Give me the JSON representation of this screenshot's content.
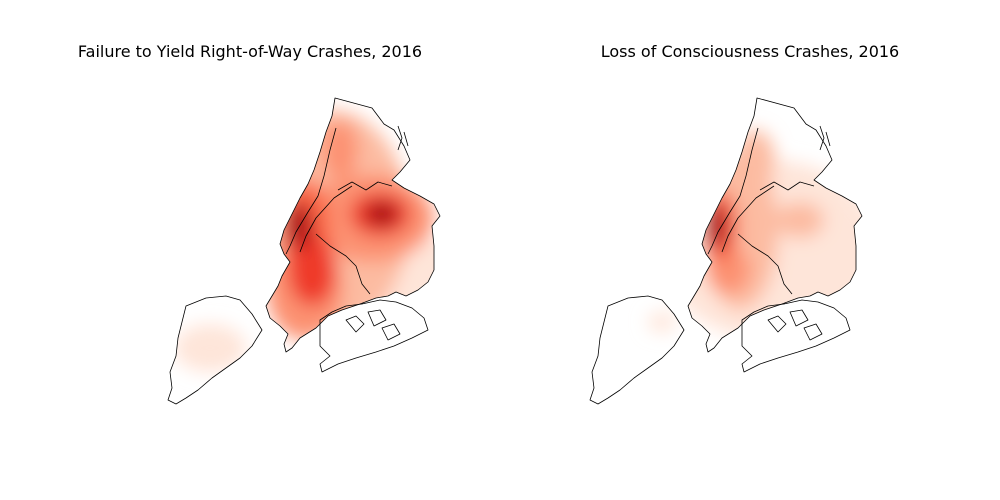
{
  "figure": {
    "panels": [
      {
        "title": "Failure to Yield Right-of-Way Crashes, 2016",
        "colormap": "Reds"
      },
      {
        "title": "Loss of Consciousness Crashes, 2016",
        "colormap": "Reds"
      }
    ]
  },
  "colors": {
    "level_1": "#fee5d9",
    "level_2": "#fcbba1",
    "level_3": "#fc9272",
    "level_4": "#fb6a4a",
    "level_5": "#ef3b2c",
    "level_6": "#cb181d",
    "level_7": "#a50f15",
    "outline": "#000000"
  }
}
